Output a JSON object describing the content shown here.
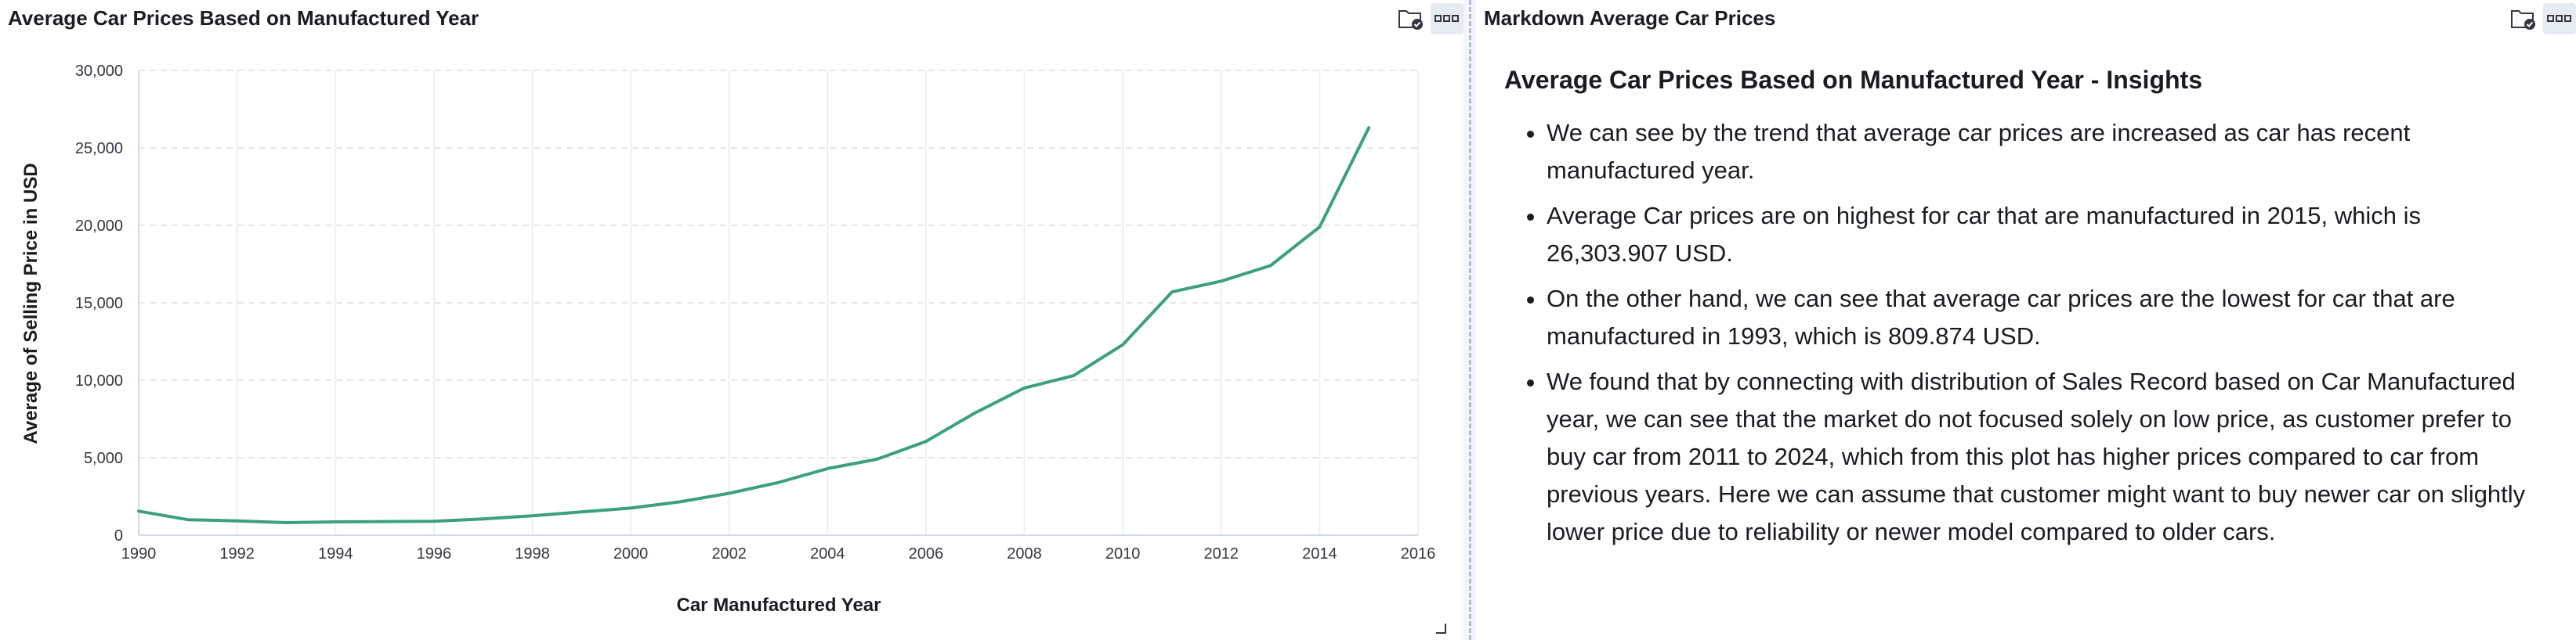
{
  "left_panel": {
    "title": "Average Car Prices Based on Manufactured Year",
    "icons": [
      "folder-check-icon",
      "panel-options-icon"
    ]
  },
  "right_panel": {
    "title": "Markdown Average Car Prices",
    "icons": [
      "folder-check-icon",
      "panel-options-icon"
    ],
    "markdown": {
      "heading": "Average Car Prices Based on Manufactured Year - Insights",
      "bullets": [
        "We can see by the trend that average car prices are increased as car has recent manufactured year.",
        "Average Car prices are on highest for car that are manufactured in 2015, which is 26,303.907 USD.",
        "On the other hand, we can see that average car prices are the lowest for car that are manufactured in 1993, which is 809.874 USD.",
        "We found that by connecting with distribution of Sales Record based on Car Manufactured year, we can see that the market do not focused solely on low price, as customer prefer to buy car from 2011 to 2024, which from this plot has higher prices compared to car from previous years. Here we can assume that customer might want to buy newer car on slightly lower price due to reliability or newer model compared to older cars."
      ]
    }
  },
  "chart_data": {
    "type": "line",
    "title": "",
    "xlabel": "Car Manufactured Year",
    "ylabel": "Average of Selling Price in USD",
    "xlim": [
      1990,
      2016
    ],
    "ylim": [
      0,
      30000
    ],
    "x_ticks": [
      "1990",
      "1992",
      "1994",
      "1996",
      "1998",
      "2000",
      "2002",
      "2004",
      "2006",
      "2008",
      "2010",
      "2012",
      "2014",
      "2016"
    ],
    "y_ticks": [
      "0",
      "5,000",
      "10,000",
      "15,000",
      "20,000",
      "25,000",
      "30,000"
    ],
    "grid": true,
    "line_color": "#3ca07e",
    "series": [
      {
        "x": [
          1990,
          1991,
          1992,
          1993,
          1994,
          1995,
          1996,
          1997,
          1998,
          1999,
          2000,
          2001,
          2002,
          2003,
          2004,
          2005,
          2006,
          2007,
          2008,
          2009,
          2010,
          2011,
          2012,
          2013,
          2014,
          2015
        ],
        "values": [
          1550,
          1000,
          920,
          809.874,
          860,
          880,
          900,
          1050,
          1250,
          1500,
          1750,
          2150,
          2700,
          3400,
          4300,
          4900,
          6050,
          7900,
          9500,
          10300,
          12300,
          15700,
          16400,
          17400,
          19900,
          26303.907
        ]
      }
    ]
  }
}
